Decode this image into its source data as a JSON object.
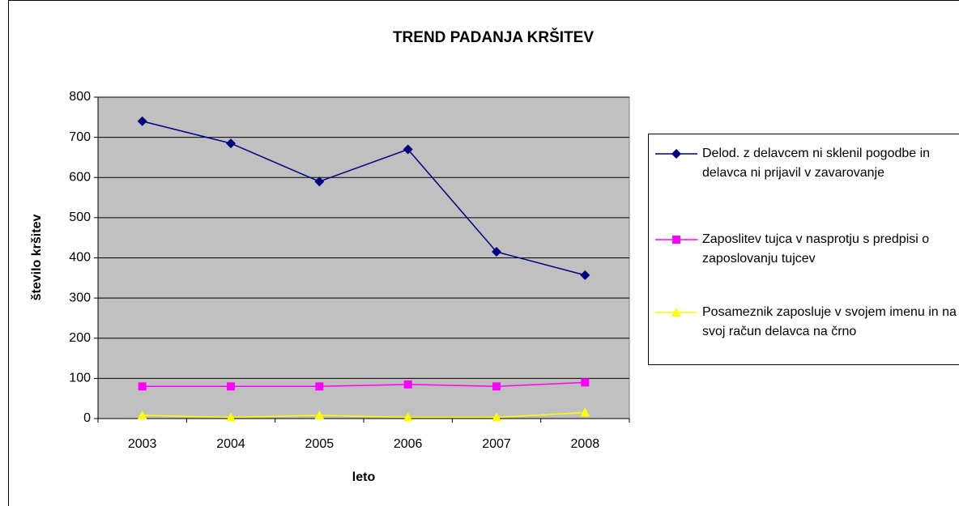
{
  "chart_data": {
    "type": "line",
    "title": "TREND PADANJA KRŠITEV",
    "x_label": "leto",
    "y_label": "število kršitev",
    "categories": [
      "2003",
      "2004",
      "2005",
      "2006",
      "2007",
      "2008"
    ],
    "series": [
      {
        "name": "Delod. z delavcem ni sklenil pogodbe in delavca ni prijavil v zavarovanje",
        "color": "#000080",
        "marker": "diamond",
        "values": [
          740,
          685,
          590,
          670,
          415,
          357
        ]
      },
      {
        "name": "Zaposlitev tujca v nasprotju s predpisi o zaposlovanju tujcev",
        "color": "#ff00ff",
        "marker": "square",
        "values": [
          80,
          80,
          80,
          85,
          80,
          90
        ]
      },
      {
        "name": "Posameznik zaposluje v svojem imenu in na svoj račun delavca na črno",
        "color": "#ffff00",
        "marker": "triangle",
        "values": [
          8,
          3,
          8,
          3,
          3,
          15
        ]
      }
    ],
    "ylim": [
      0,
      800
    ],
    "yticks": [
      0,
      100,
      200,
      300,
      400,
      500,
      600,
      700,
      800
    ],
    "grid": true,
    "legend": "right",
    "plot_background": "#c0c0c0"
  }
}
